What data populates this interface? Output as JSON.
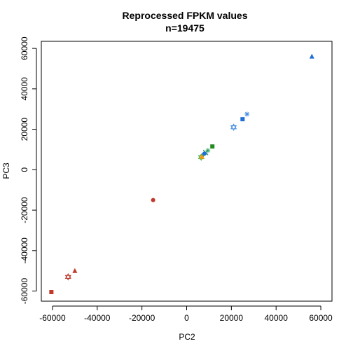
{
  "chart_data": {
    "type": "scatter",
    "title": "Reprocessed FPKM values",
    "subtitle": "n=19475",
    "xlabel": "PC2",
    "ylabel": "PC3",
    "xlim": [
      -65000,
      65000
    ],
    "ylim": [
      -65000,
      63500
    ],
    "xticks": [
      -60000,
      -40000,
      -20000,
      0,
      20000,
      40000,
      60000
    ],
    "yticks": [
      -60000,
      -40000,
      -20000,
      0,
      20000,
      40000,
      60000
    ],
    "points": [
      {
        "x": 56000,
        "y": 56000,
        "shape": "triangle",
        "color": "#1f6fd6"
      },
      {
        "x": 27000,
        "y": 27500,
        "shape": "asterisk",
        "color": "#4a90e2"
      },
      {
        "x": 25000,
        "y": 25000,
        "shape": "square",
        "color": "#1f6fd6"
      },
      {
        "x": 21000,
        "y": 21000,
        "shape": "star-of-david",
        "color": "#4a90e2"
      },
      {
        "x": 11500,
        "y": 11500,
        "shape": "square",
        "color": "#228b22"
      },
      {
        "x": 9500,
        "y": 9500,
        "shape": "asterisk",
        "color": "#3cb371"
      },
      {
        "x": 8500,
        "y": 8500,
        "shape": "cross",
        "color": "#2e8b57"
      },
      {
        "x": 8000,
        "y": 8000,
        "shape": "circle",
        "color": "#1f6fd6"
      },
      {
        "x": 7200,
        "y": 7200,
        "shape": "diamond",
        "color": "#1f6fd6"
      },
      {
        "x": 6500,
        "y": 6200,
        "shape": "star-of-david",
        "color": "#4caf50"
      },
      {
        "x": 6800,
        "y": 6500,
        "shape": "triangle",
        "color": "#ff9800"
      },
      {
        "x": -15000,
        "y": -15000,
        "shape": "circle",
        "color": "#c0392b"
      },
      {
        "x": -50000,
        "y": -50000,
        "shape": "triangle",
        "color": "#c0392b"
      },
      {
        "x": -53000,
        "y": -53000,
        "shape": "star-of-david",
        "color": "#c0392b"
      },
      {
        "x": -60500,
        "y": -60500,
        "shape": "square",
        "color": "#c0392b"
      }
    ]
  }
}
